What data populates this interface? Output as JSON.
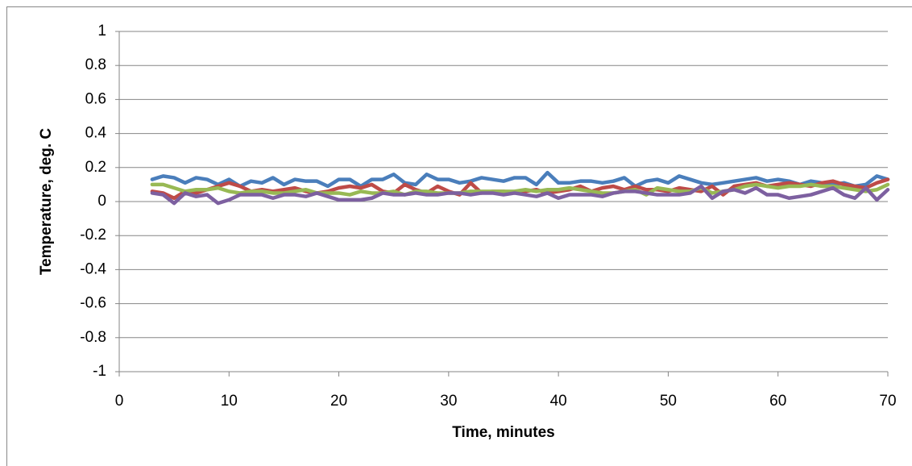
{
  "chart_data": {
    "type": "line",
    "x_label": "Time, minutes",
    "y_label": "Temperature, deg. C",
    "x": [
      3,
      4,
      5,
      6,
      7,
      8,
      9,
      10,
      11,
      12,
      13,
      14,
      15,
      16,
      17,
      18,
      19,
      20,
      21,
      22,
      23,
      24,
      25,
      26,
      27,
      28,
      29,
      30,
      31,
      32,
      33,
      34,
      35,
      36,
      37,
      38,
      39,
      40,
      41,
      42,
      43,
      44,
      45,
      46,
      47,
      48,
      49,
      50,
      51,
      52,
      53,
      54,
      55,
      56,
      57,
      58,
      59,
      60,
      61,
      62,
      63,
      64,
      65,
      66,
      67,
      68,
      69,
      70
    ],
    "series": [
      {
        "color": "#4a7ebb",
        "values": [
          0.13,
          0.15,
          0.14,
          0.11,
          0.14,
          0.13,
          0.1,
          0.13,
          0.09,
          0.12,
          0.11,
          0.14,
          0.1,
          0.13,
          0.12,
          0.12,
          0.09,
          0.13,
          0.13,
          0.09,
          0.13,
          0.13,
          0.16,
          0.11,
          0.1,
          0.16,
          0.13,
          0.13,
          0.11,
          0.12,
          0.14,
          0.13,
          0.12,
          0.14,
          0.14,
          0.1,
          0.17,
          0.11,
          0.11,
          0.12,
          0.12,
          0.11,
          0.12,
          0.14,
          0.09,
          0.12,
          0.13,
          0.11,
          0.15,
          0.13,
          0.11,
          0.1,
          0.11,
          0.12,
          0.13,
          0.14,
          0.12,
          0.13,
          0.12,
          0.1,
          0.12,
          0.11,
          0.1,
          0.11,
          0.09,
          0.1,
          0.15,
          0.13
        ]
      },
      {
        "color": "#be4b48",
        "values": [
          0.06,
          0.05,
          0.02,
          0.06,
          0.05,
          0.07,
          0.09,
          0.11,
          0.09,
          0.06,
          0.07,
          0.06,
          0.07,
          0.08,
          0.06,
          0.05,
          0.06,
          0.08,
          0.09,
          0.08,
          0.1,
          0.06,
          0.05,
          0.1,
          0.07,
          0.05,
          0.09,
          0.06,
          0.04,
          0.11,
          0.05,
          0.06,
          0.06,
          0.05,
          0.06,
          0.07,
          0.05,
          0.06,
          0.07,
          0.09,
          0.06,
          0.08,
          0.09,
          0.07,
          0.09,
          0.07,
          0.07,
          0.06,
          0.08,
          0.07,
          0.06,
          0.09,
          0.04,
          0.09,
          0.1,
          0.11,
          0.09,
          0.1,
          0.11,
          0.1,
          0.09,
          0.11,
          0.12,
          0.1,
          0.09,
          0.08,
          0.11,
          0.13
        ]
      },
      {
        "color": "#98b954",
        "values": [
          0.1,
          0.1,
          0.08,
          0.06,
          0.07,
          0.07,
          0.08,
          0.06,
          0.05,
          0.06,
          0.06,
          0.05,
          0.05,
          0.06,
          0.07,
          0.05,
          0.05,
          0.05,
          0.04,
          0.06,
          0.05,
          0.05,
          0.06,
          0.04,
          0.06,
          0.06,
          0.05,
          0.05,
          0.05,
          0.06,
          0.06,
          0.06,
          0.06,
          0.06,
          0.07,
          0.06,
          0.07,
          0.07,
          0.08,
          0.07,
          0.06,
          0.05,
          0.05,
          0.06,
          0.07,
          0.04,
          0.08,
          0.07,
          0.06,
          0.06,
          0.08,
          0.05,
          0.06,
          0.07,
          0.09,
          0.1,
          0.09,
          0.08,
          0.09,
          0.09,
          0.1,
          0.09,
          0.09,
          0.08,
          0.07,
          0.06,
          0.07,
          0.1
        ]
      },
      {
        "color": "#7d60a0",
        "values": [
          0.05,
          0.04,
          -0.01,
          0.05,
          0.03,
          0.04,
          -0.01,
          0.01,
          0.04,
          0.04,
          0.04,
          0.02,
          0.04,
          0.04,
          0.03,
          0.05,
          0.03,
          0.01,
          0.01,
          0.01,
          0.02,
          0.05,
          0.04,
          0.04,
          0.05,
          0.04,
          0.04,
          0.05,
          0.05,
          0.04,
          0.05,
          0.05,
          0.04,
          0.05,
          0.04,
          0.03,
          0.05,
          0.02,
          0.04,
          0.04,
          0.04,
          0.03,
          0.05,
          0.06,
          0.06,
          0.05,
          0.04,
          0.04,
          0.04,
          0.05,
          0.09,
          0.02,
          0.06,
          0.07,
          0.05,
          0.08,
          0.04,
          0.04,
          0.02,
          0.03,
          0.04,
          0.06,
          0.08,
          0.04,
          0.02,
          0.08,
          0.01,
          0.07
        ]
      }
    ],
    "xlim": [
      0,
      70
    ],
    "xticks": [
      0,
      10,
      20,
      30,
      40,
      50,
      60,
      70
    ],
    "ylim": [
      -1,
      1
    ],
    "yticks": [
      -1,
      -0.8,
      -0.6,
      -0.4,
      -0.2,
      0,
      0.2,
      0.4,
      0.6,
      0.8,
      1
    ],
    "grid": true
  }
}
